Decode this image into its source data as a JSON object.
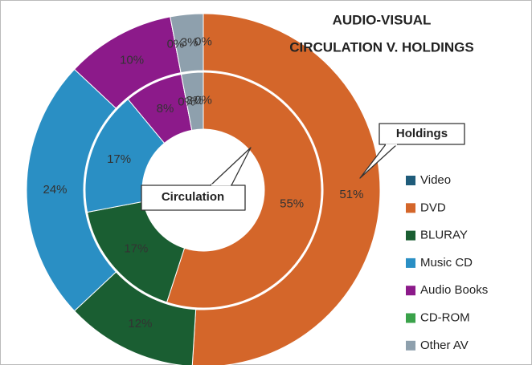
{
  "chart_data": {
    "type": "donut",
    "title": [
      "AUDIO-VISUAL",
      "CIRCULATION V. HOLDINGS"
    ],
    "categories": [
      "Video",
      "DVD",
      "BLURAY",
      "Music CD",
      "Audio Books",
      "CD-ROM",
      "Other AV"
    ],
    "colors": [
      "#1f5c7a",
      "#d4662a",
      "#1a5e32",
      "#2a8fc4",
      "#8c1a8a",
      "#3aa24a",
      "#8ea0ad"
    ],
    "series": [
      {
        "name": "Holdings",
        "values": [
          0,
          51,
          12,
          24,
          10,
          0,
          3
        ],
        "value_labels": [
          "0%",
          "51%",
          "12%",
          "24%",
          "10%",
          "0%",
          "3%"
        ]
      },
      {
        "name": "Circulation",
        "values": [
          0,
          55,
          17,
          17,
          8,
          0,
          3
        ],
        "value_labels": [
          "0%",
          "55%",
          "17%",
          "17%",
          "8%",
          "0%",
          "3%"
        ]
      }
    ],
    "legend": "right"
  }
}
